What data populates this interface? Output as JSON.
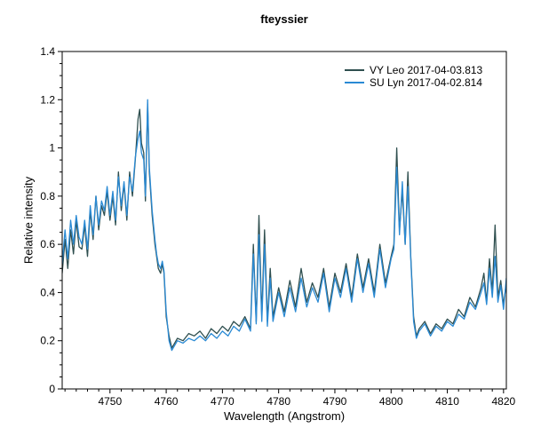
{
  "chart_data": {
    "type": "line",
    "title": "fteyssier",
    "xlabel": "Wavelength (Angstrom)",
    "ylabel": "Relative intensity",
    "xlim": [
      4741.5,
      4820.5
    ],
    "ylim": [
      0,
      1.4
    ],
    "xticks": [
      4750,
      4760,
      4770,
      4780,
      4790,
      4800,
      4810,
      4820
    ],
    "xtick_labels": [
      "4750",
      "4760",
      "4770",
      "4780",
      "4790",
      "4800",
      "4810",
      "4820"
    ],
    "yticks": [
      0,
      0.2,
      0.4,
      0.6,
      0.8,
      1.0,
      1.2,
      1.4
    ],
    "ytick_labels": [
      "0",
      "0.2",
      "0.4",
      "0.6",
      "0.8",
      "1",
      "1.2",
      "1.4"
    ],
    "grid": false,
    "legend_position": "top-right",
    "series": [
      {
        "name": "VY Leo",
        "label": "VY Leo   2017-04-03.813",
        "color": "#2f4f4f",
        "x": [
          4741.5,
          4742.0,
          4742.5,
          4743.0,
          4743.5,
          4744.0,
          4744.5,
          4745.0,
          4745.5,
          4746.0,
          4746.5,
          4747.0,
          4747.5,
          4748.0,
          4748.5,
          4749.0,
          4749.5,
          4750.0,
          4750.5,
          4751.0,
          4751.5,
          4752.0,
          4752.5,
          4753.0,
          4753.5,
          4754.0,
          4754.5,
          4755.0,
          4755.3,
          4755.6,
          4756.0,
          4756.3,
          4756.7,
          4757.0,
          4757.5,
          4758.0,
          4758.3,
          4758.6,
          4759.0,
          4759.3,
          4759.6,
          4760.0,
          4760.5,
          4761.0,
          4761.5,
          4762.0,
          4763.0,
          4764.0,
          4765.0,
          4766.0,
          4767.0,
          4768.0,
          4769.0,
          4770.0,
          4771.0,
          4772.0,
          4773.0,
          4774.0,
          4775.0,
          4775.5,
          4776.0,
          4776.5,
          4777.0,
          4777.5,
          4778.0,
          4778.5,
          4779.0,
          4780.0,
          4781.0,
          4782.0,
          4783.0,
          4784.0,
          4785.0,
          4786.0,
          4787.0,
          4788.0,
          4789.0,
          4790.0,
          4791.0,
          4792.0,
          4793.0,
          4794.0,
          4795.0,
          4796.0,
          4797.0,
          4798.0,
          4799.0,
          4800.0,
          4800.5,
          4801.0,
          4801.5,
          4802.0,
          4802.5,
          4803.0,
          4803.5,
          4804.0,
          4804.5,
          4805.0,
          4806.0,
          4807.0,
          4808.0,
          4809.0,
          4810.0,
          4811.0,
          4812.0,
          4813.0,
          4814.0,
          4815.0,
          4816.0,
          4816.5,
          4817.0,
          4817.5,
          4818.0,
          4818.5,
          4819.0,
          4819.5,
          4820.0,
          4820.5
        ],
        "y": [
          0.48,
          0.62,
          0.5,
          0.66,
          0.56,
          0.7,
          0.59,
          0.58,
          0.68,
          0.55,
          0.74,
          0.62,
          0.8,
          0.66,
          0.76,
          0.72,
          0.82,
          0.7,
          0.8,
          0.68,
          0.9,
          0.74,
          0.85,
          0.7,
          0.9,
          0.8,
          0.95,
          1.12,
          1.16,
          1.02,
          0.98,
          0.78,
          1.18,
          0.9,
          0.72,
          0.6,
          0.55,
          0.5,
          0.48,
          0.52,
          0.48,
          0.3,
          0.22,
          0.17,
          0.19,
          0.21,
          0.2,
          0.23,
          0.22,
          0.24,
          0.21,
          0.25,
          0.23,
          0.26,
          0.24,
          0.28,
          0.26,
          0.3,
          0.25,
          0.6,
          0.28,
          0.72,
          0.3,
          0.66,
          0.28,
          0.5,
          0.3,
          0.42,
          0.32,
          0.45,
          0.34,
          0.5,
          0.36,
          0.44,
          0.38,
          0.5,
          0.34,
          0.48,
          0.4,
          0.52,
          0.38,
          0.56,
          0.42,
          0.54,
          0.4,
          0.6,
          0.44,
          0.55,
          0.6,
          1.0,
          0.66,
          0.82,
          0.6,
          0.9,
          0.55,
          0.3,
          0.22,
          0.25,
          0.28,
          0.23,
          0.27,
          0.25,
          0.29,
          0.27,
          0.33,
          0.3,
          0.38,
          0.34,
          0.42,
          0.48,
          0.36,
          0.54,
          0.4,
          0.68,
          0.38,
          0.45,
          0.35,
          0.44
        ]
      },
      {
        "name": "SU Lyn",
        "label": "SU Lyn   2017-04-02.814",
        "color": "#2a8ad4",
        "x": [
          4741.5,
          4742.0,
          4742.5,
          4743.0,
          4743.5,
          4744.0,
          4744.5,
          4745.0,
          4745.5,
          4746.0,
          4746.5,
          4747.0,
          4747.5,
          4748.0,
          4748.5,
          4749.0,
          4749.5,
          4750.0,
          4750.5,
          4751.0,
          4751.5,
          4752.0,
          4752.5,
          4753.0,
          4753.5,
          4754.0,
          4754.5,
          4755.0,
          4755.3,
          4755.6,
          4756.0,
          4756.3,
          4756.7,
          4757.0,
          4757.5,
          4758.0,
          4758.3,
          4758.6,
          4759.0,
          4759.3,
          4759.6,
          4760.0,
          4760.5,
          4761.0,
          4761.5,
          4762.0,
          4763.0,
          4764.0,
          4765.0,
          4766.0,
          4767.0,
          4768.0,
          4769.0,
          4770.0,
          4771.0,
          4772.0,
          4773.0,
          4774.0,
          4775.0,
          4775.5,
          4776.0,
          4776.5,
          4777.0,
          4777.5,
          4778.0,
          4778.5,
          4779.0,
          4780.0,
          4781.0,
          4782.0,
          4783.0,
          4784.0,
          4785.0,
          4786.0,
          4787.0,
          4788.0,
          4789.0,
          4790.0,
          4791.0,
          4792.0,
          4793.0,
          4794.0,
          4795.0,
          4796.0,
          4797.0,
          4798.0,
          4799.0,
          4800.0,
          4800.5,
          4801.0,
          4801.5,
          4802.0,
          4802.5,
          4803.0,
          4803.5,
          4804.0,
          4804.5,
          4805.0,
          4806.0,
          4807.0,
          4808.0,
          4809.0,
          4810.0,
          4811.0,
          4812.0,
          4813.0,
          4814.0,
          4815.0,
          4816.0,
          4816.5,
          4817.0,
          4817.5,
          4818.0,
          4818.5,
          4819.0,
          4819.5,
          4820.0,
          4820.5
        ],
        "y": [
          0.52,
          0.66,
          0.54,
          0.7,
          0.6,
          0.72,
          0.63,
          0.6,
          0.7,
          0.58,
          0.76,
          0.64,
          0.8,
          0.68,
          0.78,
          0.74,
          0.84,
          0.72,
          0.82,
          0.7,
          0.88,
          0.76,
          0.86,
          0.72,
          0.88,
          0.82,
          0.96,
          1.04,
          1.07,
          0.98,
          0.95,
          0.8,
          1.2,
          0.92,
          0.74,
          0.62,
          0.56,
          0.52,
          0.5,
          0.53,
          0.49,
          0.32,
          0.2,
          0.16,
          0.18,
          0.2,
          0.19,
          0.21,
          0.2,
          0.22,
          0.2,
          0.23,
          0.21,
          0.24,
          0.22,
          0.26,
          0.24,
          0.29,
          0.24,
          0.56,
          0.27,
          0.64,
          0.28,
          0.6,
          0.26,
          0.46,
          0.28,
          0.4,
          0.3,
          0.42,
          0.32,
          0.46,
          0.34,
          0.42,
          0.36,
          0.48,
          0.32,
          0.46,
          0.38,
          0.5,
          0.36,
          0.54,
          0.4,
          0.52,
          0.38,
          0.58,
          0.42,
          0.54,
          0.58,
          0.92,
          0.64,
          0.86,
          0.6,
          0.84,
          0.54,
          0.28,
          0.21,
          0.24,
          0.27,
          0.22,
          0.26,
          0.24,
          0.28,
          0.26,
          0.31,
          0.29,
          0.36,
          0.33,
          0.4,
          0.44,
          0.35,
          0.5,
          0.38,
          0.55,
          0.36,
          0.43,
          0.33,
          0.46
        ]
      }
    ]
  }
}
